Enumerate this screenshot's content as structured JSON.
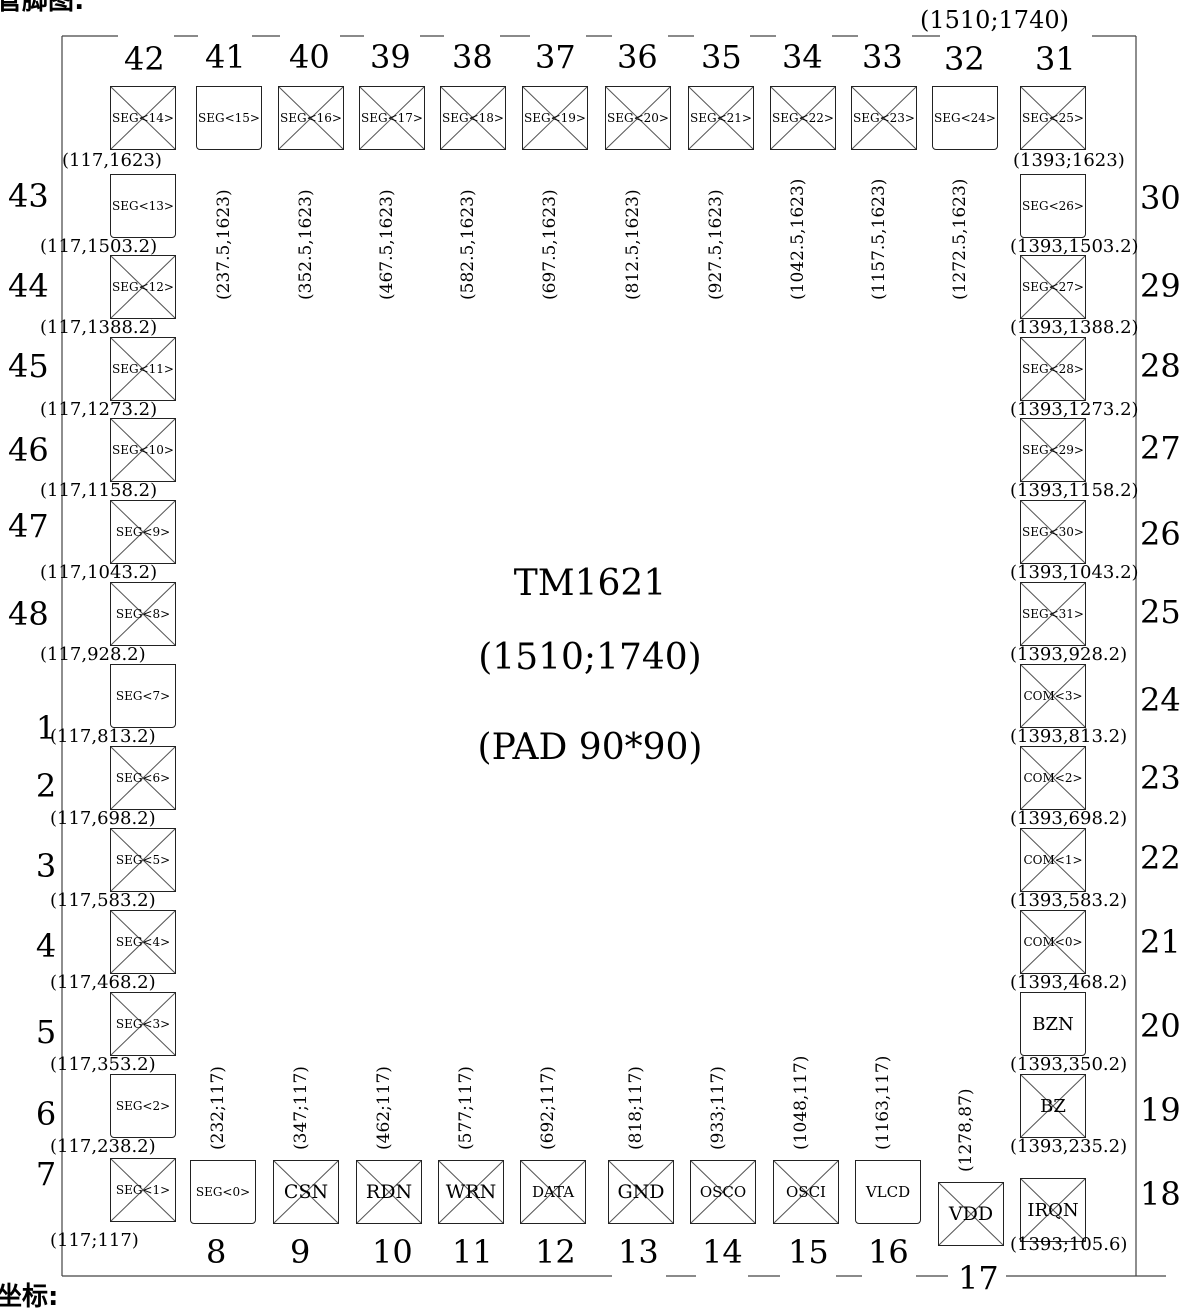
{
  "header_fragment": "管脚图:",
  "footer_fragment": "坐标:",
  "chip": {
    "name": "TM1621",
    "size": "(1510;1740)",
    "pad": "(PAD 90*90)",
    "corner_label": "(1510;1740)"
  },
  "top_pads": [
    {
      "num": "42",
      "label": "SEG<14>",
      "coord": "(117,1623)",
      "cross": true
    },
    {
      "num": "41",
      "label": "SEG<15>",
      "coord": "(237.5,1623)",
      "cross": false
    },
    {
      "num": "40",
      "label": "SEG<16>",
      "coord": "(352.5,1623)",
      "cross": true
    },
    {
      "num": "39",
      "label": "SEG<17>",
      "coord": "(467.5,1623)",
      "cross": true
    },
    {
      "num": "38",
      "label": "SEG<18>",
      "coord": "(582.5,1623)",
      "cross": true
    },
    {
      "num": "37",
      "label": "SEG<19>",
      "coord": "(697.5,1623)",
      "cross": true
    },
    {
      "num": "36",
      "label": "SEG<20>",
      "coord": "(812.5,1623)",
      "cross": true
    },
    {
      "num": "35",
      "label": "SEG<21>",
      "coord": "(927.5,1623)",
      "cross": true
    },
    {
      "num": "34",
      "label": "SEG<22>",
      "coord": "(1042.5,1623)",
      "cross": true
    },
    {
      "num": "33",
      "label": "SEG<23>",
      "coord": "(1157.5,1623)",
      "cross": true
    },
    {
      "num": "32",
      "label": "SEG<24>",
      "coord": "(1272.5,1623)",
      "cross": false
    },
    {
      "num": "31",
      "label": "SEG<25>",
      "coord": "(1393;1623)",
      "cross": true
    }
  ],
  "left_pads": [
    {
      "num": "43",
      "label": "SEG<13>",
      "coord": "(117,1503.2)",
      "cross": false
    },
    {
      "num": "44",
      "label": "SEG<12>",
      "coord": "(117,1388.2)",
      "cross": true
    },
    {
      "num": "45",
      "label": "SEG<11>",
      "coord": "(117,1273.2)",
      "cross": true
    },
    {
      "num": "46",
      "label": "SEG<10>",
      "coord": "(117,1158.2)",
      "cross": true
    },
    {
      "num": "47",
      "label": "SEG<9>",
      "coord": "(117,1043.2)",
      "cross": true
    },
    {
      "num": "48",
      "label": "SEG<8>",
      "coord": "(117,928.2)",
      "cross": true
    },
    {
      "num": "1",
      "label": "SEG<7>",
      "coord": "(117,813.2)",
      "cross": false
    },
    {
      "num": "2",
      "label": "SEG<6>",
      "coord": "(117,698.2)",
      "cross": true
    },
    {
      "num": "3",
      "label": "SEG<5>",
      "coord": "(117,583.2)",
      "cross": true
    },
    {
      "num": "4",
      "label": "SEG<4>",
      "coord": "(117,468.2)",
      "cross": true
    },
    {
      "num": "5",
      "label": "SEG<3>",
      "coord": "(117,353.2)",
      "cross": true
    },
    {
      "num": "6",
      "label": "SEG<2>",
      "coord": "(117,238.2)",
      "cross": false
    },
    {
      "num": "7",
      "label": "SEG<1>",
      "coord": "(117;117)",
      "cross": true
    }
  ],
  "right_pads": [
    {
      "num": "30",
      "label": "SEG<26>",
      "coord": "(1393,1503.2)",
      "cross": false
    },
    {
      "num": "29",
      "label": "SEG<27>",
      "coord": "(1393,1388.2)",
      "cross": true
    },
    {
      "num": "28",
      "label": "SEG<28>",
      "coord": "(1393,1273.2)",
      "cross": true
    },
    {
      "num": "27",
      "label": "SEG<29>",
      "coord": "(1393,1158.2)",
      "cross": true
    },
    {
      "num": "26",
      "label": "SEG<30>",
      "coord": "(1393,1043.2)",
      "cross": true
    },
    {
      "num": "25",
      "label": "SEG<31>",
      "coord": "(1393,928.2)",
      "cross": true
    },
    {
      "num": "24",
      "label": "COM<3>",
      "coord": "(1393,813.2)",
      "cross": true
    },
    {
      "num": "23",
      "label": "COM<2>",
      "coord": "(1393,698.2)",
      "cross": true
    },
    {
      "num": "22",
      "label": "COM<1>",
      "coord": "(1393,583.2)",
      "cross": true
    },
    {
      "num": "21",
      "label": "COM<0>",
      "coord": "(1393,468.2)",
      "cross": true
    },
    {
      "num": "20",
      "label": "BZN",
      "coord": "(1393,350.2)",
      "cross": false
    },
    {
      "num": "19",
      "label": "BZ",
      "coord": "(1393,235.2)",
      "cross": true
    },
    {
      "num": "18",
      "label": "IRQN",
      "coord": "(1393;105.6)",
      "cross": true
    }
  ],
  "bottom_pads": [
    {
      "num": "8",
      "label": "SEG<0>",
      "coord": "(232;117)",
      "cross": false
    },
    {
      "num": "9",
      "label": "CSN",
      "coord": "(347;117)",
      "cross": true
    },
    {
      "num": "10",
      "label": "RDN",
      "coord": "(462;117)",
      "cross": true
    },
    {
      "num": "11",
      "label": "WRN",
      "coord": "(577;117)",
      "cross": true
    },
    {
      "num": "12",
      "label": "DATA",
      "coord": "(692;117)",
      "cross": true
    },
    {
      "num": "13",
      "label": "GND",
      "coord": "(818;117)",
      "cross": true
    },
    {
      "num": "14",
      "label": "OSCO",
      "coord": "(933;117)",
      "cross": true
    },
    {
      "num": "15",
      "label": "OSCI",
      "coord": "(1048,117)",
      "cross": true
    },
    {
      "num": "16",
      "label": "VLCD",
      "coord": "(1163,117)",
      "cross": false
    },
    {
      "num": "17",
      "label": "VDD",
      "coord": "(1278,87)",
      "cross": true
    }
  ]
}
